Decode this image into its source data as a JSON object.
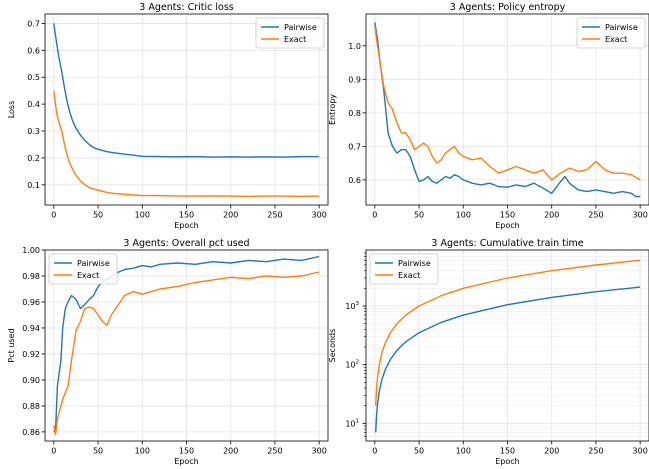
{
  "chart_data": [
    {
      "type": "line",
      "title": "3 Agents: Critic loss",
      "xlabel": "Epoch",
      "ylabel": "Loss",
      "xlim": [
        -10,
        310
      ],
      "ylim": [
        0.025,
        0.735
      ],
      "yscale": "linear",
      "xticks": [
        0,
        50,
        100,
        150,
        200,
        250,
        300
      ],
      "yticks": [
        0.1,
        0.2,
        0.3,
        0.4,
        0.5,
        0.6,
        0.7
      ],
      "ytick_labels": [
        "0.1",
        "0.2",
        "0.3",
        "0.4",
        "0.5",
        "0.6",
        "0.7"
      ],
      "grid": true,
      "legend": "upper right",
      "series": [
        {
          "name": "Pairwise",
          "color": "#1f77b4",
          "x": [
            0,
            3,
            6,
            9,
            12,
            15,
            18,
            21,
            25,
            30,
            35,
            40,
            45,
            50,
            55,
            60,
            70,
            80,
            90,
            100,
            120,
            140,
            160,
            180,
            200,
            220,
            240,
            260,
            280,
            300
          ],
          "y": [
            0.7,
            0.63,
            0.57,
            0.52,
            0.46,
            0.41,
            0.37,
            0.34,
            0.31,
            0.285,
            0.265,
            0.25,
            0.238,
            0.232,
            0.228,
            0.223,
            0.218,
            0.214,
            0.21,
            0.206,
            0.205,
            0.204,
            0.205,
            0.203,
            0.204,
            0.203,
            0.204,
            0.203,
            0.205,
            0.205
          ]
        },
        {
          "name": "Exact",
          "color": "#ff7f0e",
          "x": [
            0,
            3,
            6,
            9,
            12,
            15,
            18,
            21,
            25,
            30,
            35,
            40,
            45,
            50,
            60,
            70,
            80,
            90,
            100,
            120,
            140,
            160,
            180,
            200,
            220,
            240,
            260,
            280,
            300
          ],
          "y": [
            0.45,
            0.37,
            0.33,
            0.3,
            0.25,
            0.21,
            0.18,
            0.16,
            0.135,
            0.115,
            0.1,
            0.09,
            0.085,
            0.08,
            0.072,
            0.067,
            0.065,
            0.062,
            0.06,
            0.06,
            0.058,
            0.058,
            0.059,
            0.058,
            0.057,
            0.058,
            0.058,
            0.057,
            0.058
          ]
        }
      ]
    },
    {
      "type": "line",
      "title": "3 Agents: Policy entropy",
      "xlabel": "Epoch",
      "ylabel": "Entropy",
      "xlim": [
        -10,
        310
      ],
      "ylim": [
        0.525,
        1.095
      ],
      "yscale": "linear",
      "xticks": [
        0,
        50,
        100,
        150,
        200,
        250,
        300
      ],
      "yticks": [
        0.6,
        0.7,
        0.8,
        0.9,
        1.0
      ],
      "ytick_labels": [
        "0.6",
        "0.7",
        "0.8",
        "0.9",
        "1.0"
      ],
      "grid": true,
      "legend": "upper right",
      "series": [
        {
          "name": "Pairwise",
          "color": "#1f77b4",
          "x": [
            0,
            3,
            6,
            10,
            15,
            20,
            25,
            30,
            35,
            40,
            45,
            50,
            55,
            60,
            65,
            70,
            75,
            80,
            85,
            90,
            95,
            100,
            110,
            120,
            130,
            140,
            150,
            160,
            170,
            180,
            190,
            200,
            210,
            215,
            220,
            230,
            240,
            250,
            260,
            270,
            280,
            290,
            295,
            300
          ],
          "y": [
            1.07,
            1.02,
            0.95,
            0.87,
            0.74,
            0.7,
            0.68,
            0.69,
            0.69,
            0.67,
            0.63,
            0.595,
            0.6,
            0.61,
            0.595,
            0.59,
            0.6,
            0.61,
            0.605,
            0.615,
            0.61,
            0.6,
            0.59,
            0.585,
            0.59,
            0.58,
            0.578,
            0.585,
            0.58,
            0.59,
            0.575,
            0.56,
            0.595,
            0.61,
            0.59,
            0.57,
            0.565,
            0.57,
            0.565,
            0.56,
            0.565,
            0.56,
            0.55,
            0.55
          ]
        },
        {
          "name": "Exact",
          "color": "#ff7f0e",
          "x": [
            0,
            3,
            6,
            10,
            15,
            20,
            25,
            30,
            35,
            40,
            45,
            50,
            55,
            60,
            65,
            70,
            75,
            80,
            85,
            90,
            95,
            100,
            110,
            120,
            130,
            140,
            150,
            160,
            170,
            180,
            190,
            200,
            210,
            220,
            230,
            240,
            250,
            260,
            270,
            280,
            290,
            300
          ],
          "y": [
            1.06,
            1.0,
            0.95,
            0.88,
            0.83,
            0.81,
            0.77,
            0.74,
            0.74,
            0.72,
            0.69,
            0.7,
            0.71,
            0.7,
            0.67,
            0.65,
            0.66,
            0.68,
            0.69,
            0.7,
            0.68,
            0.67,
            0.66,
            0.665,
            0.64,
            0.62,
            0.63,
            0.64,
            0.63,
            0.62,
            0.63,
            0.6,
            0.62,
            0.635,
            0.625,
            0.63,
            0.655,
            0.63,
            0.62,
            0.62,
            0.615,
            0.6
          ]
        }
      ]
    },
    {
      "type": "line",
      "title": "3 Agents: Overall pct used",
      "xlabel": "Epoch",
      "ylabel": "Pct used",
      "xlim": [
        -10,
        310
      ],
      "ylim": [
        0.853,
        1.0
      ],
      "yscale": "linear",
      "xticks": [
        0,
        50,
        100,
        150,
        200,
        250,
        300
      ],
      "yticks": [
        0.86,
        0.88,
        0.9,
        0.92,
        0.94,
        0.96,
        0.98,
        1.0
      ],
      "ytick_labels": [
        "0.86",
        "0.88",
        "0.90",
        "0.92",
        "0.94",
        "0.96",
        "0.98",
        "1.00"
      ],
      "grid": true,
      "legend": "upper left",
      "series": [
        {
          "name": "Pairwise",
          "color": "#1f77b4",
          "x": [
            0,
            2,
            4,
            6,
            8,
            10,
            13,
            16,
            20,
            25,
            30,
            35,
            40,
            45,
            50,
            55,
            60,
            70,
            80,
            90,
            100,
            110,
            120,
            140,
            160,
            180,
            200,
            220,
            240,
            260,
            280,
            300
          ],
          "y": [
            0.86,
            0.862,
            0.895,
            0.905,
            0.915,
            0.94,
            0.955,
            0.96,
            0.965,
            0.962,
            0.955,
            0.958,
            0.962,
            0.965,
            0.972,
            0.975,
            0.978,
            0.982,
            0.985,
            0.986,
            0.988,
            0.987,
            0.989,
            0.99,
            0.989,
            0.991,
            0.99,
            0.992,
            0.991,
            0.993,
            0.992,
            0.995
          ]
        },
        {
          "name": "Exact",
          "color": "#ff7f0e",
          "x": [
            0,
            2,
            4,
            6,
            8,
            10,
            13,
            16,
            20,
            25,
            30,
            35,
            40,
            45,
            50,
            55,
            60,
            65,
            70,
            75,
            80,
            90,
            100,
            110,
            120,
            140,
            160,
            180,
            200,
            220,
            240,
            260,
            280,
            300
          ],
          "y": [
            0.865,
            0.858,
            0.87,
            0.875,
            0.88,
            0.885,
            0.89,
            0.895,
            0.915,
            0.938,
            0.945,
            0.955,
            0.956,
            0.955,
            0.95,
            0.945,
            0.942,
            0.95,
            0.955,
            0.96,
            0.965,
            0.968,
            0.966,
            0.968,
            0.97,
            0.972,
            0.975,
            0.977,
            0.979,
            0.978,
            0.98,
            0.979,
            0.98,
            0.983
          ]
        }
      ]
    },
    {
      "type": "line",
      "title": "3 Agents: Cumulative train time",
      "xlabel": "Epoch",
      "ylabel": "Seconds",
      "xlim": [
        -10,
        310
      ],
      "ylim": [
        5,
        9000
      ],
      "yscale": "log",
      "xticks": [
        0,
        50,
        100,
        150,
        200,
        250,
        300
      ],
      "yticks": [
        10,
        100,
        1000
      ],
      "ytick_labels": [
        "10",
        "10",
        "10"
      ],
      "ytick_exponents": [
        "1",
        "2",
        "3"
      ],
      "grid": true,
      "legend": "upper left",
      "series": [
        {
          "name": "Pairwise",
          "color": "#1f77b4",
          "x": [
            1,
            2,
            3,
            5,
            8,
            12,
            18,
            25,
            35,
            50,
            75,
            100,
            150,
            200,
            250,
            300
          ],
          "y": [
            7,
            14,
            21,
            35,
            56,
            84,
            126,
            175,
            245,
            350,
            525,
            700,
            1050,
            1400,
            1750,
            2100
          ]
        },
        {
          "name": "Exact",
          "color": "#ff7f0e",
          "x": [
            1,
            2,
            3,
            5,
            8,
            12,
            18,
            25,
            35,
            50,
            75,
            100,
            150,
            200,
            250,
            290,
            300
          ],
          "y": [
            20,
            40,
            60,
            100,
            160,
            240,
            360,
            500,
            700,
            1000,
            1500,
            2000,
            3000,
            4000,
            5000,
            5800,
            6000
          ]
        }
      ]
    }
  ]
}
